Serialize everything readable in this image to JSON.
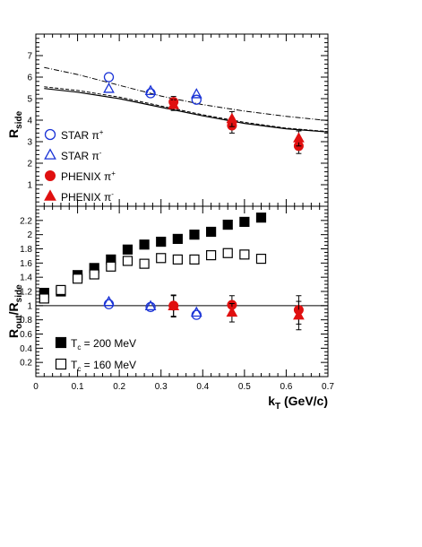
{
  "chart_data": [
    {
      "type": "scatter",
      "panel": "top",
      "ylabel": "R",
      "ylabel_sub": "side",
      "xlim": [
        0,
        0.7
      ],
      "ylim": [
        0,
        8
      ],
      "y_ticks": [
        1,
        2,
        3,
        4,
        5,
        6,
        7
      ],
      "series": [
        {
          "name": "STAR π",
          "charge": "+",
          "marker": "open-circle",
          "color": "#1a33d6",
          "x": [
            0.175,
            0.275,
            0.385
          ],
          "y": [
            6.0,
            5.25,
            4.95
          ],
          "err": [
            0,
            0,
            0
          ]
        },
        {
          "name": "STAR π",
          "charge": "-",
          "marker": "open-triangle",
          "color": "#1a33d6",
          "x": [
            0.175,
            0.275,
            0.385
          ],
          "y": [
            5.45,
            5.35,
            5.2
          ],
          "err": [
            0,
            0,
            0
          ]
        },
        {
          "name": "PHENIX π",
          "charge": "+",
          "marker": "filled-circle",
          "color": "#e01010",
          "x": [
            0.33,
            0.47,
            0.63
          ],
          "y": [
            4.85,
            3.75,
            2.8
          ],
          "err": [
            0.25,
            0.35,
            0.35
          ]
        },
        {
          "name": "PHENIX π",
          "charge": "-",
          "marker": "filled-triangle",
          "color": "#e01010",
          "x": [
            0.33,
            0.47,
            0.63
          ],
          "y": [
            4.7,
            4.05,
            3.15
          ],
          "err": [
            0.25,
            0.35,
            0.35
          ]
        }
      ],
      "curves": [
        {
          "style": "dash-dot",
          "x": [
            0.02,
            0.1,
            0.2,
            0.3,
            0.4,
            0.5,
            0.6,
            0.7
          ],
          "y": [
            6.45,
            6.12,
            5.62,
            5.12,
            4.72,
            4.42,
            4.18,
            3.98
          ]
        },
        {
          "style": "solid",
          "x": [
            0.02,
            0.1,
            0.2,
            0.3,
            0.4,
            0.5,
            0.6,
            0.7
          ],
          "y": [
            5.47,
            5.3,
            5.0,
            4.6,
            4.2,
            3.85,
            3.6,
            3.45
          ]
        },
        {
          "style": "dashed",
          "x": [
            0.02,
            0.1,
            0.2,
            0.3,
            0.4,
            0.5,
            0.6,
            0.7
          ],
          "y": [
            5.55,
            5.38,
            5.07,
            4.66,
            4.25,
            3.9,
            3.63,
            3.47
          ]
        }
      ],
      "legend": [
        {
          "label": "STAR π",
          "sup": "+",
          "marker": "open-circle",
          "color": "#1a33d6"
        },
        {
          "label": "STAR π",
          "sup": "-",
          "marker": "open-triangle",
          "color": "#1a33d6"
        },
        {
          "label": "PHENIX π",
          "sup": "+",
          "marker": "filled-circle",
          "color": "#e01010"
        },
        {
          "label": "PHENIX π",
          "sup": "-",
          "marker": "filled-triangle",
          "color": "#e01010"
        }
      ],
      "legend_position": "bottom-left"
    },
    {
      "type": "scatter",
      "panel": "bottom",
      "ylabel": "R",
      "ylabel_sub": "out",
      "ylabel_mid": "/R",
      "ylabel_sub2": "side",
      "xlabel": "k",
      "xlabel_sub": "T",
      "xlabel_unit": " (GeV/c)",
      "xlim": [
        0,
        0.7
      ],
      "ylim": [
        0,
        2.4
      ],
      "x_ticks": [
        "0",
        "0.1",
        "0.2",
        "0.3",
        "0.4",
        "0.5",
        "0.6",
        "0.7"
      ],
      "x_tick_values": [
        0,
        0.1,
        0.2,
        0.3,
        0.4,
        0.5,
        0.6,
        0.7
      ],
      "y_ticks": [
        "0.2",
        "0.4",
        "0.6",
        "0.8",
        "1",
        "1.2",
        "1.4",
        "1.6",
        "1.8",
        "2",
        "2.2"
      ],
      "y_tick_values": [
        0.2,
        0.4,
        0.6,
        0.8,
        1.0,
        1.2,
        1.4,
        1.6,
        1.8,
        2.0,
        2.2
      ],
      "reference_line": 1.0,
      "series": [
        {
          "name": "T = 200 MeV",
          "marker": "filled-square",
          "color": "#000000",
          "x": [
            0.02,
            0.06,
            0.1,
            0.14,
            0.18,
            0.22,
            0.26,
            0.3,
            0.34,
            0.38,
            0.42,
            0.46,
            0.5,
            0.54
          ],
          "y": [
            1.18,
            1.2,
            1.43,
            1.53,
            1.65,
            1.79,
            1.86,
            1.9,
            1.94,
            2.0,
            2.04,
            2.14,
            2.18,
            2.24
          ]
        },
        {
          "name": "T = 160 MeV",
          "marker": "open-square",
          "color": "#000000",
          "x": [
            0.02,
            0.06,
            0.1,
            0.14,
            0.18,
            0.22,
            0.26,
            0.3,
            0.34,
            0.38,
            0.42,
            0.46,
            0.5,
            0.54
          ],
          "y": [
            1.1,
            1.22,
            1.38,
            1.44,
            1.55,
            1.63,
            1.59,
            1.67,
            1.65,
            1.65,
            1.71,
            1.74,
            1.72,
            1.66
          ]
        },
        {
          "name": "STAR π+",
          "marker": "open-circle",
          "color": "#1a33d6",
          "x": [
            0.175,
            0.275,
            0.385
          ],
          "y": [
            1.02,
            0.98,
            0.87
          ],
          "err": [
            0,
            0,
            0
          ]
        },
        {
          "name": "STAR π-",
          "marker": "open-triangle",
          "color": "#1a33d6",
          "x": [
            0.175,
            0.275,
            0.385
          ],
          "y": [
            1.05,
            0.99,
            0.9
          ],
          "err": [
            0,
            0,
            0
          ]
        },
        {
          "name": "PHENIX π+",
          "marker": "filled-circle",
          "color": "#e01010",
          "x": [
            0.33,
            0.47,
            0.63
          ],
          "y": [
            1.0,
            1.01,
            0.94
          ],
          "err": [
            0.15,
            0.13,
            0.2
          ]
        },
        {
          "name": "PHENIX π-",
          "marker": "filled-triangle",
          "color": "#e01010",
          "x": [
            0.33,
            0.47,
            0.63
          ],
          "y": [
            0.99,
            0.9,
            0.86
          ],
          "err": [
            0.15,
            0.13,
            0.2
          ]
        }
      ],
      "legend": [
        {
          "label": "T",
          "sub": "c",
          "rest": " = 200 MeV",
          "marker": "filled-square"
        },
        {
          "label": "T",
          "sub": "c",
          "rest": " = 160 MeV",
          "marker": "open-square"
        }
      ],
      "legend_position": "bottom-left"
    }
  ]
}
